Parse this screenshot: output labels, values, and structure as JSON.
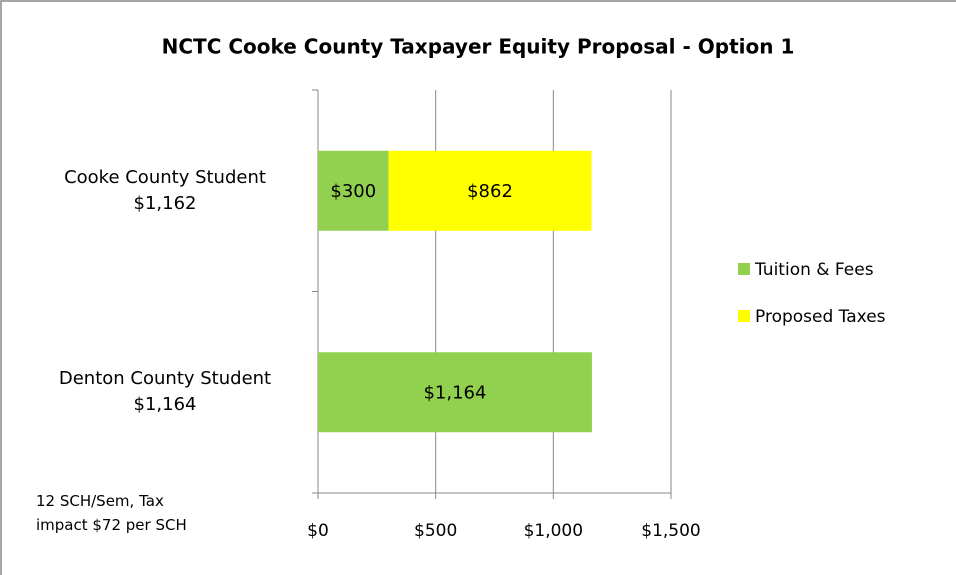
{
  "chart_data": {
    "type": "stacked-bar-horizontal",
    "title": "NCTC Cooke County Taxpayer Equity Proposal - Option 1",
    "categories": [
      "Cooke County Student\n$1,162",
      "Denton County Student\n$1,164"
    ],
    "series": [
      {
        "name": "Tuition & Fees",
        "color": "#92d050",
        "values": [
          300,
          1164
        ],
        "value_labels": [
          "$300",
          "$1,164"
        ]
      },
      {
        "name": "Proposed Taxes",
        "color": "#ffff00",
        "values": [
          862,
          null
        ],
        "value_labels": [
          "$862",
          null
        ]
      }
    ],
    "xlim": [
      0,
      1500
    ],
    "xticks": [
      {
        "value": 0,
        "label": "$0"
      },
      {
        "value": 500,
        "label": "$500"
      },
      {
        "value": 1000,
        "label": "$1,000"
      },
      {
        "value": 1500,
        "label": "$1,500"
      }
    ],
    "grid": true,
    "legend": "right",
    "annotation": "12 SCH/Sem, Tax\nimpact $72 per SCH"
  }
}
